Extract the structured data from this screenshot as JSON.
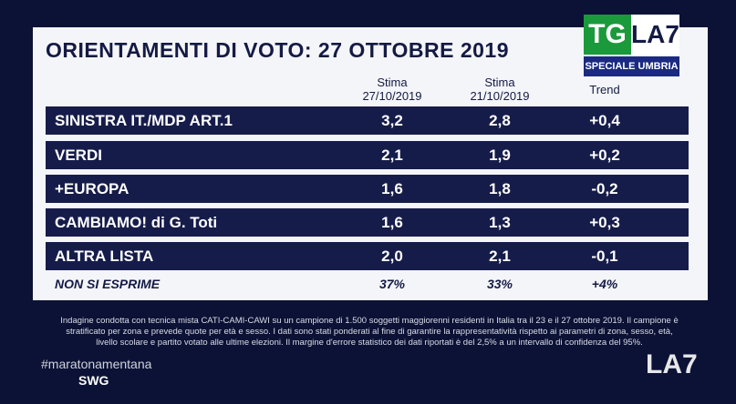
{
  "title": "ORIENTAMENTI DI VOTO: 27 OTTOBRE 2019",
  "logo": {
    "tg": "TG",
    "channel": "LA7",
    "special": "SPECIALE UMBRIA"
  },
  "table": {
    "columns": [
      [
        "Stima",
        "27/10/2019"
      ],
      [
        "Stima",
        "21/10/2019"
      ],
      [
        "Trend"
      ]
    ],
    "rows": [
      [
        "SINISTRA IT./MDP ART.1",
        "3,2",
        "2,8",
        "+0,4"
      ],
      [
        "VERDI",
        "2,1",
        "1,9",
        "+0,2"
      ],
      [
        "+EUROPA",
        "1,6",
        "1,8",
        "-0,2"
      ],
      [
        "CAMBIAMO! di G. Toti",
        "1,6",
        "1,3",
        "+0,3"
      ],
      [
        "ALTRA LISTA",
        "2,0",
        "2,1",
        "-0,1"
      ],
      [
        "NON SI ESPRIME",
        "37%",
        "33%",
        "+4%"
      ]
    ]
  },
  "footnote": "Indagine condotta con tecnica mista CATI-CAMI-CAWI su un campione di 1.500 soggetti maggiorenni residenti in Italia tra il 23 e il 27 ottobre 2019. Il campione è stratificato per zona e prevede quote per età e sesso. I dati sono stati ponderati al fine di garantire la rappresentatività rispetto ai parametri di zona, sesso, età, livello scolare e partito votato alle ultime elezioni. Il margine d'errore statistico dei dati riportati è del 2,5% a un intervallo di confidenza del 95%.",
  "hashtag": "#maratonamentana",
  "source": "SWG",
  "brand": "LA7"
}
